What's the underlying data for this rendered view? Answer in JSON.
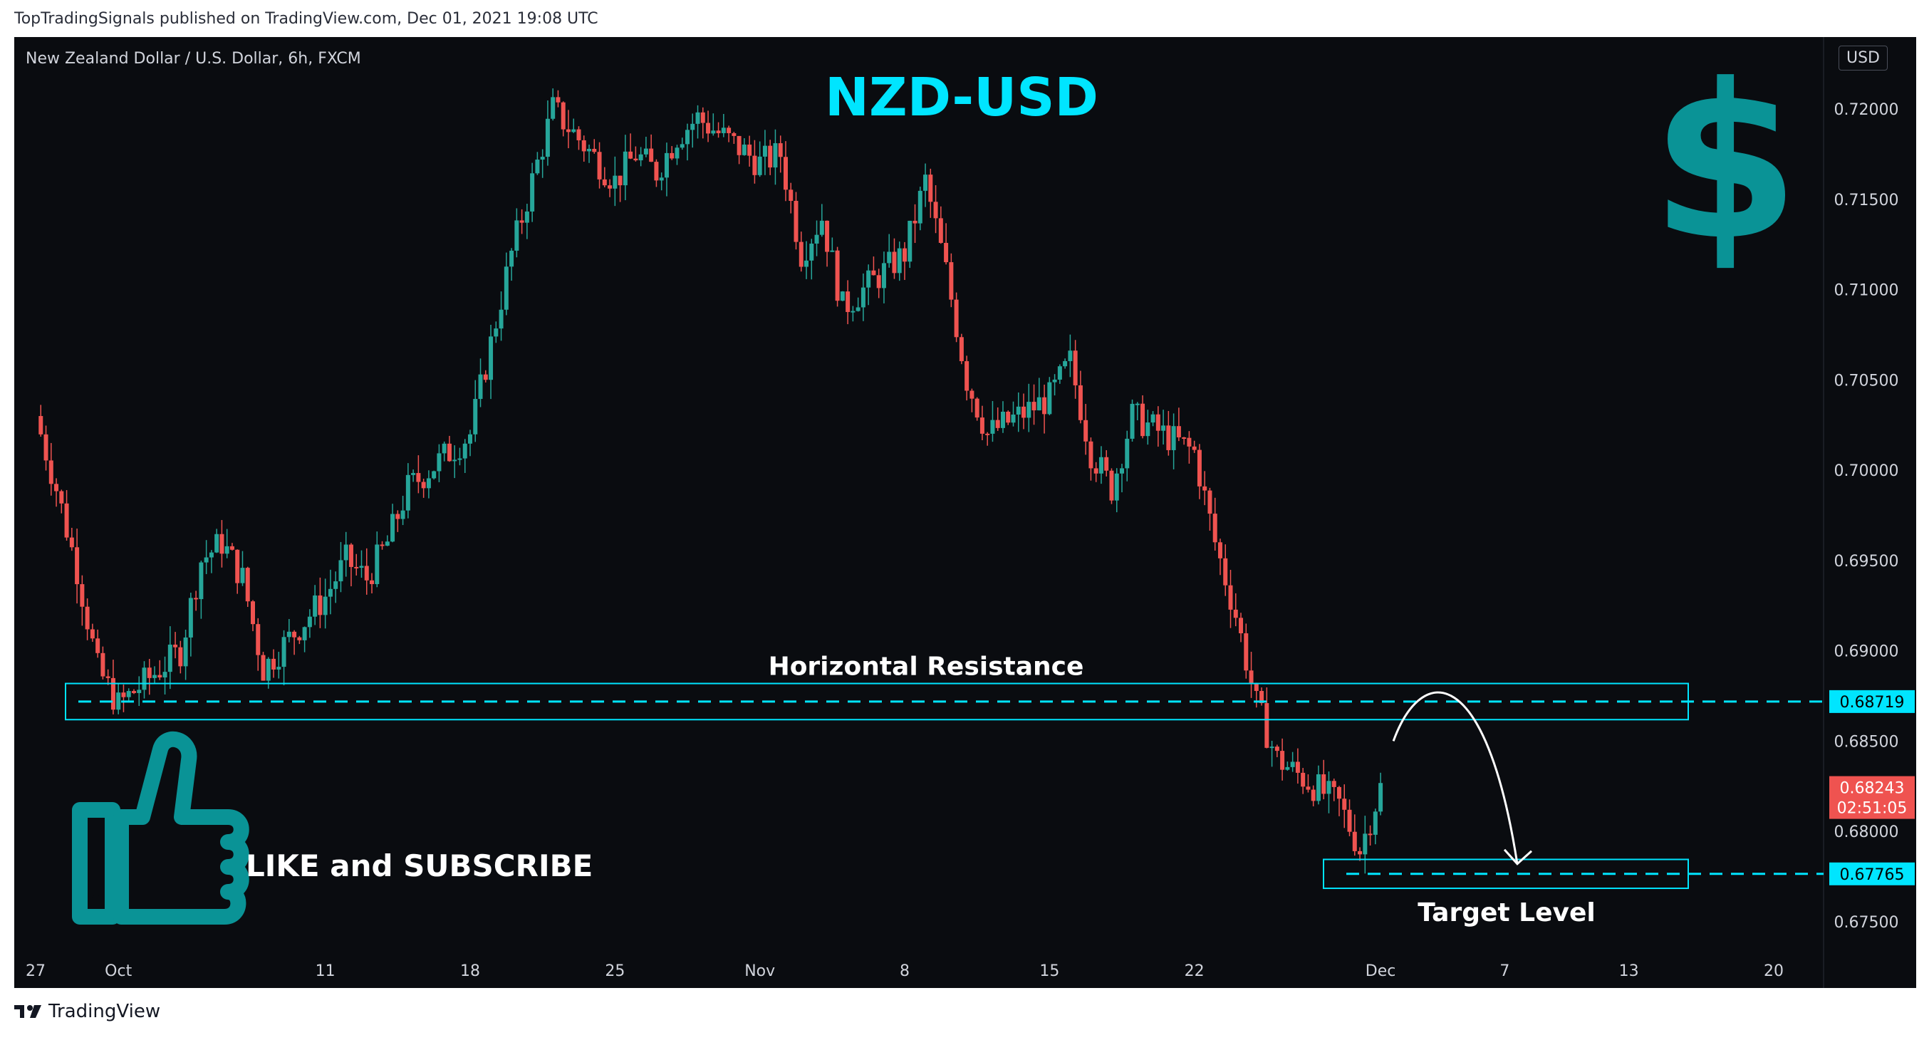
{
  "publisher_line": "TopTradingSignals published on TradingView.com, Dec 01, 2021 19:08 UTC",
  "symbol_title": "New Zealand Dollar / U.S. Dollar, 6h, FXCM",
  "currency_badge": "USD",
  "footer_brand": "TradingView",
  "colors": {
    "background": "#0a0c10",
    "up_candle": "#26a69a",
    "down_candle": "#ef5350",
    "accent_cyan": "#00e5ff",
    "teal_icon": "#0a9396",
    "axis_text": "#d1d4dc"
  },
  "chart_data": {
    "type": "candlestick",
    "pair_label": "NZD-USD",
    "timeframe": "6h",
    "y_axis_ticks": [
      "0.72000",
      "0.71500",
      "0.71000",
      "0.70500",
      "0.70000",
      "0.69500",
      "0.69000",
      "0.68500",
      "0.68000",
      "0.67500"
    ],
    "ylim": [
      0.6735,
      0.7228
    ],
    "x_axis_ticks": [
      "27",
      "Oct",
      "11",
      "18",
      "25",
      "Nov",
      "8",
      "15",
      "22",
      "Dec",
      "7",
      "13",
      "20"
    ],
    "close_path": [
      {
        "date": "2021-09-27",
        "close": 0.703
      },
      {
        "date": "2021-09-28",
        "close": 0.699
      },
      {
        "date": "2021-09-29",
        "close": 0.6945
      },
      {
        "date": "2021-09-30",
        "close": 0.689
      },
      {
        "date": "2021-10-01",
        "close": 0.687
      },
      {
        "date": "2021-10-04",
        "close": 0.69
      },
      {
        "date": "2021-10-05",
        "close": 0.695
      },
      {
        "date": "2021-10-06",
        "close": 0.696
      },
      {
        "date": "2021-10-07",
        "close": 0.694
      },
      {
        "date": "2021-10-08",
        "close": 0.689
      },
      {
        "date": "2021-10-11",
        "close": 0.693
      },
      {
        "date": "2021-10-12",
        "close": 0.695
      },
      {
        "date": "2021-10-13",
        "close": 0.694
      },
      {
        "date": "2021-10-14",
        "close": 0.696
      },
      {
        "date": "2021-10-15",
        "close": 0.699
      },
      {
        "date": "2021-10-18",
        "close": 0.702
      },
      {
        "date": "2021-10-19",
        "close": 0.707
      },
      {
        "date": "2021-10-20",
        "close": 0.712
      },
      {
        "date": "2021-10-21",
        "close": 0.716
      },
      {
        "date": "2021-10-22",
        "close": 0.72
      },
      {
        "date": "2021-10-25",
        "close": 0.716
      },
      {
        "date": "2021-10-26",
        "close": 0.7175
      },
      {
        "date": "2021-10-27",
        "close": 0.7165
      },
      {
        "date": "2021-10-28",
        "close": 0.7185
      },
      {
        "date": "2021-10-29",
        "close": 0.7195
      },
      {
        "date": "2021-11-01",
        "close": 0.717
      },
      {
        "date": "2021-11-02",
        "close": 0.7175
      },
      {
        "date": "2021-11-03",
        "close": 0.712
      },
      {
        "date": "2021-11-04",
        "close": 0.714
      },
      {
        "date": "2021-11-05",
        "close": 0.709
      },
      {
        "date": "2021-11-08",
        "close": 0.712
      },
      {
        "date": "2021-11-09",
        "close": 0.716
      },
      {
        "date": "2021-11-10",
        "close": 0.711
      },
      {
        "date": "2021-11-11",
        "close": 0.705
      },
      {
        "date": "2021-11-12",
        "close": 0.702
      },
      {
        "date": "2021-11-15",
        "close": 0.704
      },
      {
        "date": "2021-11-16",
        "close": 0.706
      },
      {
        "date": "2021-11-17",
        "close": 0.701
      },
      {
        "date": "2021-11-18",
        "close": 0.699
      },
      {
        "date": "2021-11-19",
        "close": 0.703
      },
      {
        "date": "2021-11-22",
        "close": 0.701
      },
      {
        "date": "2021-11-23",
        "close": 0.696
      },
      {
        "date": "2021-11-24",
        "close": 0.692
      },
      {
        "date": "2021-11-25",
        "close": 0.687
      },
      {
        "date": "2021-11-26",
        "close": 0.684
      },
      {
        "date": "2021-11-29",
        "close": 0.6815
      },
      {
        "date": "2021-11-30",
        "close": 0.679
      },
      {
        "date": "2021-12-01",
        "close": 0.6824
      }
    ],
    "current_price": "0.68243",
    "countdown": "02:51:05",
    "resistance_level": "0.68719",
    "target_level": "0.67765",
    "annotations": {
      "resistance_label": "Horizontal Resistance",
      "target_label": "Target Level",
      "cta_label": "LIKE and SUBSCRIBE"
    },
    "grid": false,
    "legend": "none"
  }
}
